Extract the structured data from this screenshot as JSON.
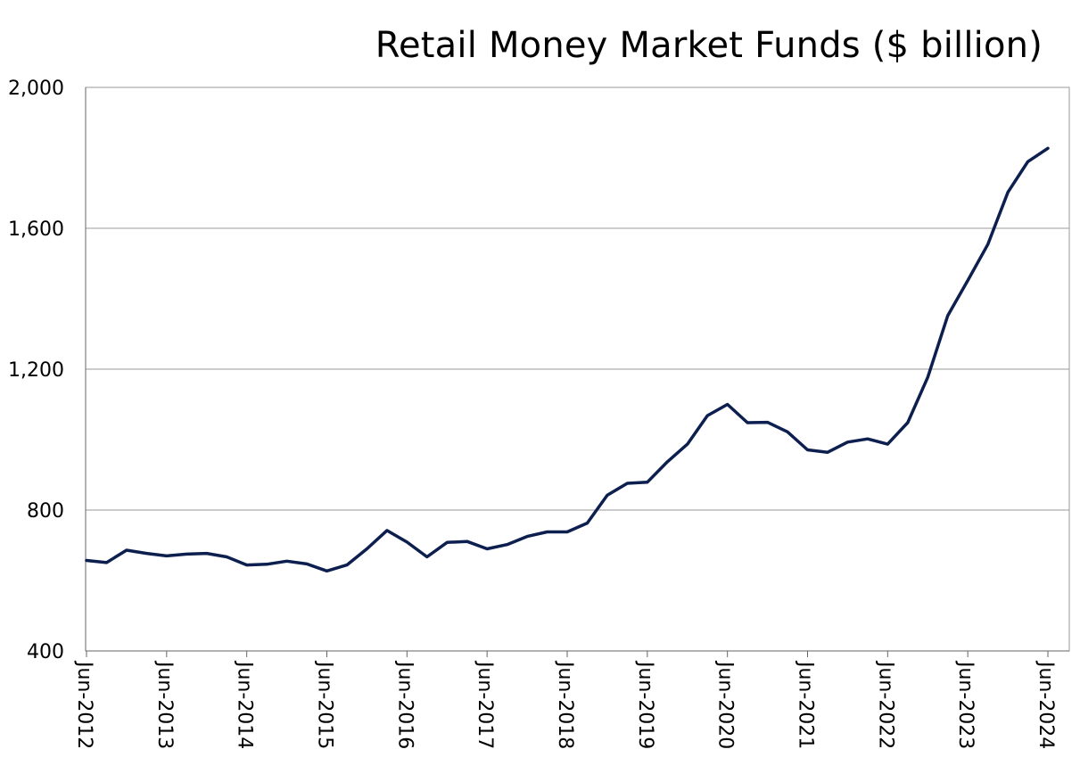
{
  "chart_data": {
    "type": "line",
    "title": "Retail Money Market Funds ($ billion)",
    "xlabel": "",
    "ylabel": "",
    "ylim": [
      400,
      2000
    ],
    "yticks": [
      400,
      800,
      1200,
      1600,
      2000
    ],
    "ytick_labels": [
      "400",
      "800",
      "1,200",
      "1,600",
      "2,000"
    ],
    "xtick_labels": [
      "Jun-2012",
      "Jun-2013",
      "Jun-2014",
      "Jun-2015",
      "Jun-2016",
      "Jun-2017",
      "Jun-2018",
      "Jun-2019",
      "Jun-2020",
      "Jun-2021",
      "Jun-2022",
      "Jun-2023",
      "Jun-2024"
    ],
    "grid": true,
    "line_color": "#0d1f4f",
    "series": [
      {
        "values": [
          {
            "x": "Jun-2012",
            "y": 657
          },
          {
            "x": "Sep-2012",
            "y": 651
          },
          {
            "x": "Dec-2012",
            "y": 686
          },
          {
            "x": "Mar-2013",
            "y": 677
          },
          {
            "x": "Jun-2013",
            "y": 670
          },
          {
            "x": "Sep-2013",
            "y": 675
          },
          {
            "x": "Dec-2013",
            "y": 677
          },
          {
            "x": "Mar-2014",
            "y": 667
          },
          {
            "x": "Jun-2014",
            "y": 644
          },
          {
            "x": "Sep-2014",
            "y": 646
          },
          {
            "x": "Dec-2014",
            "y": 655
          },
          {
            "x": "Mar-2015",
            "y": 647
          },
          {
            "x": "Jun-2015",
            "y": 627
          },
          {
            "x": "Sep-2015",
            "y": 644
          },
          {
            "x": "Dec-2015",
            "y": 690
          },
          {
            "x": "Mar-2016",
            "y": 742
          },
          {
            "x": "Jun-2016",
            "y": 709
          },
          {
            "x": "Sep-2016",
            "y": 667
          },
          {
            "x": "Dec-2016",
            "y": 708
          },
          {
            "x": "Mar-2017",
            "y": 711
          },
          {
            "x": "Jun-2017",
            "y": 690
          },
          {
            "x": "Sep-2017",
            "y": 702
          },
          {
            "x": "Dec-2017",
            "y": 725
          },
          {
            "x": "Mar-2018",
            "y": 738
          },
          {
            "x": "Jun-2018",
            "y": 738
          },
          {
            "x": "Sep-2018",
            "y": 763
          },
          {
            "x": "Dec-2018",
            "y": 842
          },
          {
            "x": "Mar-2019",
            "y": 876
          },
          {
            "x": "Jun-2019",
            "y": 879
          },
          {
            "x": "Sep-2019",
            "y": 937
          },
          {
            "x": "Dec-2019",
            "y": 987
          },
          {
            "x": "Mar-2020",
            "y": 1068
          },
          {
            "x": "Jun-2020",
            "y": 1100
          },
          {
            "x": "Sep-2020",
            "y": 1048
          },
          {
            "x": "Dec-2020",
            "y": 1049
          },
          {
            "x": "Mar-2021",
            "y": 1022
          },
          {
            "x": "Jun-2021",
            "y": 971
          },
          {
            "x": "Sep-2021",
            "y": 964
          },
          {
            "x": "Dec-2021",
            "y": 993
          },
          {
            "x": "Mar-2022",
            "y": 1002
          },
          {
            "x": "Jun-2022",
            "y": 987
          },
          {
            "x": "Sep-2022",
            "y": 1048
          },
          {
            "x": "Dec-2022",
            "y": 1177
          },
          {
            "x": "Mar-2023",
            "y": 1352
          },
          {
            "x": "Jun-2023",
            "y": 1452
          },
          {
            "x": "Sep-2023",
            "y": 1554
          },
          {
            "x": "Dec-2023",
            "y": 1702
          },
          {
            "x": "Mar-2024",
            "y": 1789
          },
          {
            "x": "Jun-2024",
            "y": 1827
          }
        ]
      }
    ]
  }
}
